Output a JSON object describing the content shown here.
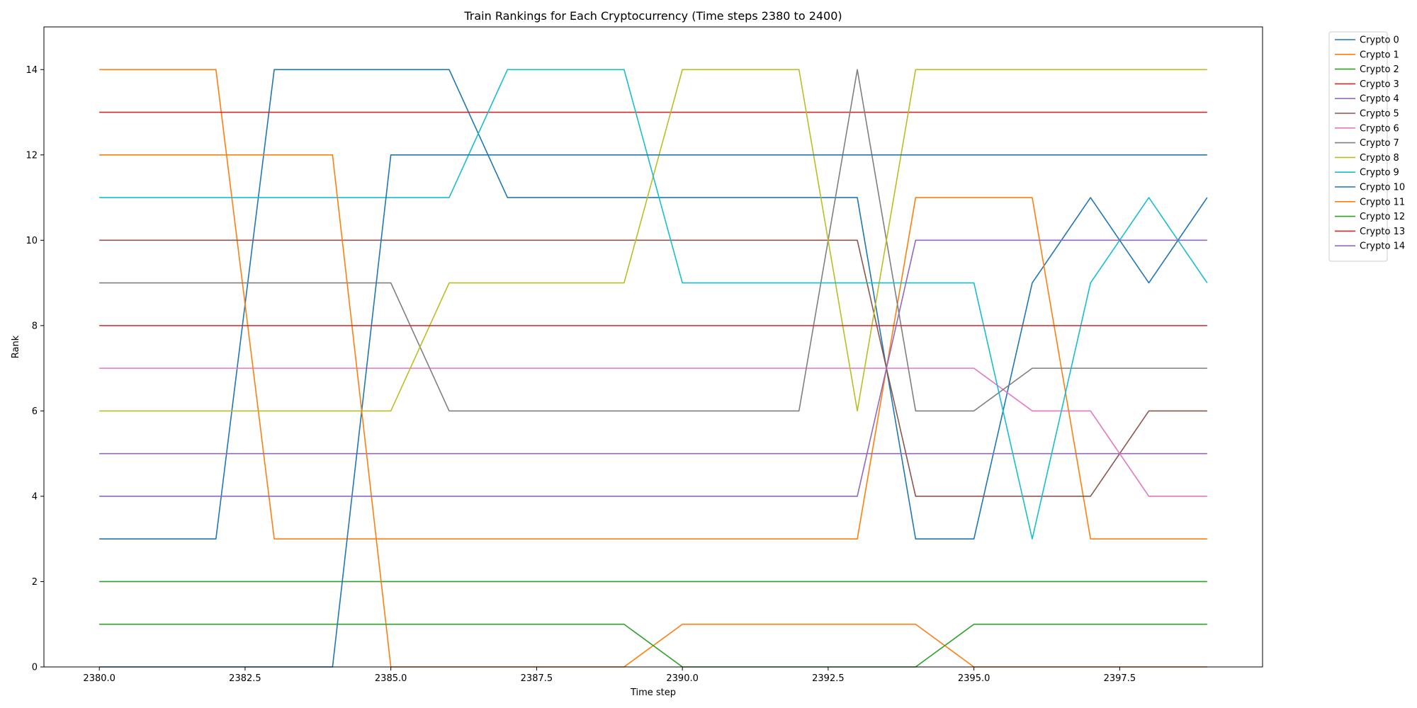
{
  "chart_data": {
    "type": "line",
    "title": "Train Rankings for Each Cryptocurrency (Time steps 2380 to 2400)",
    "xlabel": "Time step",
    "ylabel": "Rank",
    "xlim": [
      2379.05,
      2399.95
    ],
    "ylim": [
      0,
      15
    ],
    "xticks": [
      2380.0,
      2382.5,
      2385.0,
      2387.5,
      2390.0,
      2392.5,
      2395.0,
      2397.5
    ],
    "xtick_labels": [
      "2380.0",
      "2382.5",
      "2385.0",
      "2387.5",
      "2390.0",
      "2392.5",
      "2395.0",
      "2397.5"
    ],
    "yticks": [
      0,
      2,
      4,
      6,
      8,
      10,
      12,
      14
    ],
    "ytick_labels": [
      "0",
      "2",
      "4",
      "6",
      "8",
      "10",
      "12",
      "14"
    ],
    "grid": false,
    "legend_position": "outside-top-right",
    "x": [
      2380,
      2381,
      2382,
      2383,
      2384,
      2385,
      2386,
      2387,
      2388,
      2389,
      2390,
      2391,
      2392,
      2393,
      2394,
      2395,
      2396,
      2397,
      2398,
      2399
    ],
    "series": [
      {
        "name": "Crypto 0",
        "color": "#1f77b4",
        "values": [
          3,
          3,
          3,
          14,
          14,
          14,
          14,
          11,
          11,
          11,
          11,
          11,
          11,
          11,
          3,
          3,
          9,
          11,
          9,
          11
        ]
      },
      {
        "name": "Crypto 1",
        "color": "#ff7f0e",
        "values": [
          14,
          14,
          14,
          3,
          3,
          3,
          3,
          3,
          3,
          3,
          3,
          3,
          3,
          3,
          11,
          11,
          11,
          3,
          3,
          3
        ]
      },
      {
        "name": "Crypto 2",
        "color": "#2ca02c",
        "values": [
          2,
          2,
          2,
          2,
          2,
          2,
          2,
          2,
          2,
          2,
          2,
          2,
          2,
          2,
          2,
          2,
          2,
          2,
          2,
          2
        ]
      },
      {
        "name": "Crypto 3",
        "color": "#d62728",
        "values": [
          13,
          13,
          13,
          13,
          13,
          13,
          13,
          13,
          13,
          13,
          13,
          13,
          13,
          13,
          13,
          13,
          13,
          13,
          13,
          13
        ]
      },
      {
        "name": "Crypto 4",
        "color": "#9467bd",
        "values": [
          5,
          5,
          5,
          5,
          5,
          5,
          5,
          5,
          5,
          5,
          5,
          5,
          5,
          5,
          5,
          5,
          5,
          5,
          5,
          5
        ]
      },
      {
        "name": "Crypto 5",
        "color": "#8c564b",
        "values": [
          10,
          10,
          10,
          10,
          10,
          10,
          10,
          10,
          10,
          10,
          10,
          10,
          10,
          10,
          4,
          4,
          4,
          4,
          6,
          6
        ]
      },
      {
        "name": "Crypto 6",
        "color": "#e377c2",
        "values": [
          7,
          7,
          7,
          7,
          7,
          7,
          7,
          7,
          7,
          7,
          7,
          7,
          7,
          7,
          7,
          7,
          6,
          6,
          4,
          4
        ]
      },
      {
        "name": "Crypto 7",
        "color": "#7f7f7f",
        "values": [
          9,
          9,
          9,
          9,
          9,
          9,
          6,
          6,
          6,
          6,
          6,
          6,
          6,
          14,
          6,
          6,
          7,
          7,
          7,
          7
        ]
      },
      {
        "name": "Crypto 8",
        "color": "#bcbd22",
        "values": [
          6,
          6,
          6,
          6,
          6,
          6,
          9,
          9,
          9,
          9,
          14,
          14,
          14,
          6,
          14,
          14,
          14,
          14,
          14,
          14
        ]
      },
      {
        "name": "Crypto 9",
        "color": "#17becf",
        "values": [
          11,
          11,
          11,
          11,
          11,
          11,
          11,
          14,
          14,
          14,
          9,
          9,
          9,
          9,
          9,
          9,
          3,
          9,
          11,
          9
        ]
      },
      {
        "name": "Crypto 10",
        "color": "#1f77b4",
        "values": [
          0,
          0,
          0,
          0,
          0,
          12,
          12,
          12,
          12,
          12,
          12,
          12,
          12,
          12,
          12,
          12,
          12,
          12,
          12,
          12
        ]
      },
      {
        "name": "Crypto 11",
        "color": "#ff7f0e",
        "values": [
          12,
          12,
          12,
          12,
          12,
          0,
          0,
          0,
          0,
          0,
          1,
          1,
          1,
          1,
          1,
          0,
          0,
          0,
          0,
          0
        ]
      },
      {
        "name": "Crypto 12",
        "color": "#2ca02c",
        "values": [
          1,
          1,
          1,
          1,
          1,
          1,
          1,
          1,
          1,
          1,
          0,
          0,
          0,
          0,
          0,
          1,
          1,
          1,
          1,
          1
        ]
      },
      {
        "name": "Crypto 13",
        "color": "#d62728",
        "values": [
          8,
          8,
          8,
          8,
          8,
          8,
          8,
          8,
          8,
          8,
          8,
          8,
          8,
          8,
          8,
          8,
          8,
          8,
          8,
          8
        ]
      },
      {
        "name": "Crypto 14",
        "color": "#9467bd",
        "values": [
          4,
          4,
          4,
          4,
          4,
          4,
          4,
          4,
          4,
          4,
          4,
          4,
          4,
          4,
          10,
          10,
          10,
          10,
          10,
          10
        ]
      }
    ]
  }
}
